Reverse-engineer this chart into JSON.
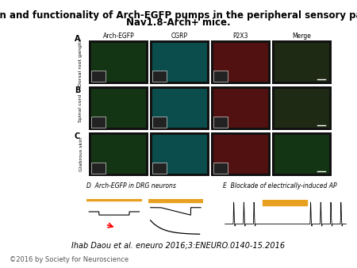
{
  "title_line1": "Distribution and functionality of Arch-EGFP pumps in the peripheral sensory pathways of",
  "title_line2": "Nav1.8-Arch+ mice.",
  "title_fontsize": 8.5,
  "title_fontweight": "bold",
  "citation": "Ihab Daou et al. eneuro 2016;3:ENEURO.0140-15.2016",
  "citation_fontsize": 7,
  "citation_style": "italic",
  "copyright": "©2016 by Society for Neuroscience",
  "copyright_fontsize": 6,
  "bg_color": "#ffffff",
  "panel_labels": [
    "A",
    "B",
    "C",
    "D",
    "E"
  ],
  "row_labels": [
    "Dorsal root ganglia",
    "Spinal cord",
    "Glabrous skin"
  ],
  "col_headers": [
    "Arch-EGFP",
    "CGRP",
    "P2X3",
    "Merge"
  ],
  "panel_label_d": "D  Arch-EGFP in DRG neurons",
  "panel_label_e": "E  Blockade of electrically-induced AP",
  "microscopy_bg": "#111111",
  "col1_color": "#1a7a1a",
  "col2_color": "#00bfbf",
  "col3_color": "#cc1111",
  "col4_color": "#2a6a1a",
  "trace_bg": "#f5f5f5",
  "header_fontsize": 5.5,
  "row_label_fontsize": 5,
  "section_label_fontsize": 6
}
